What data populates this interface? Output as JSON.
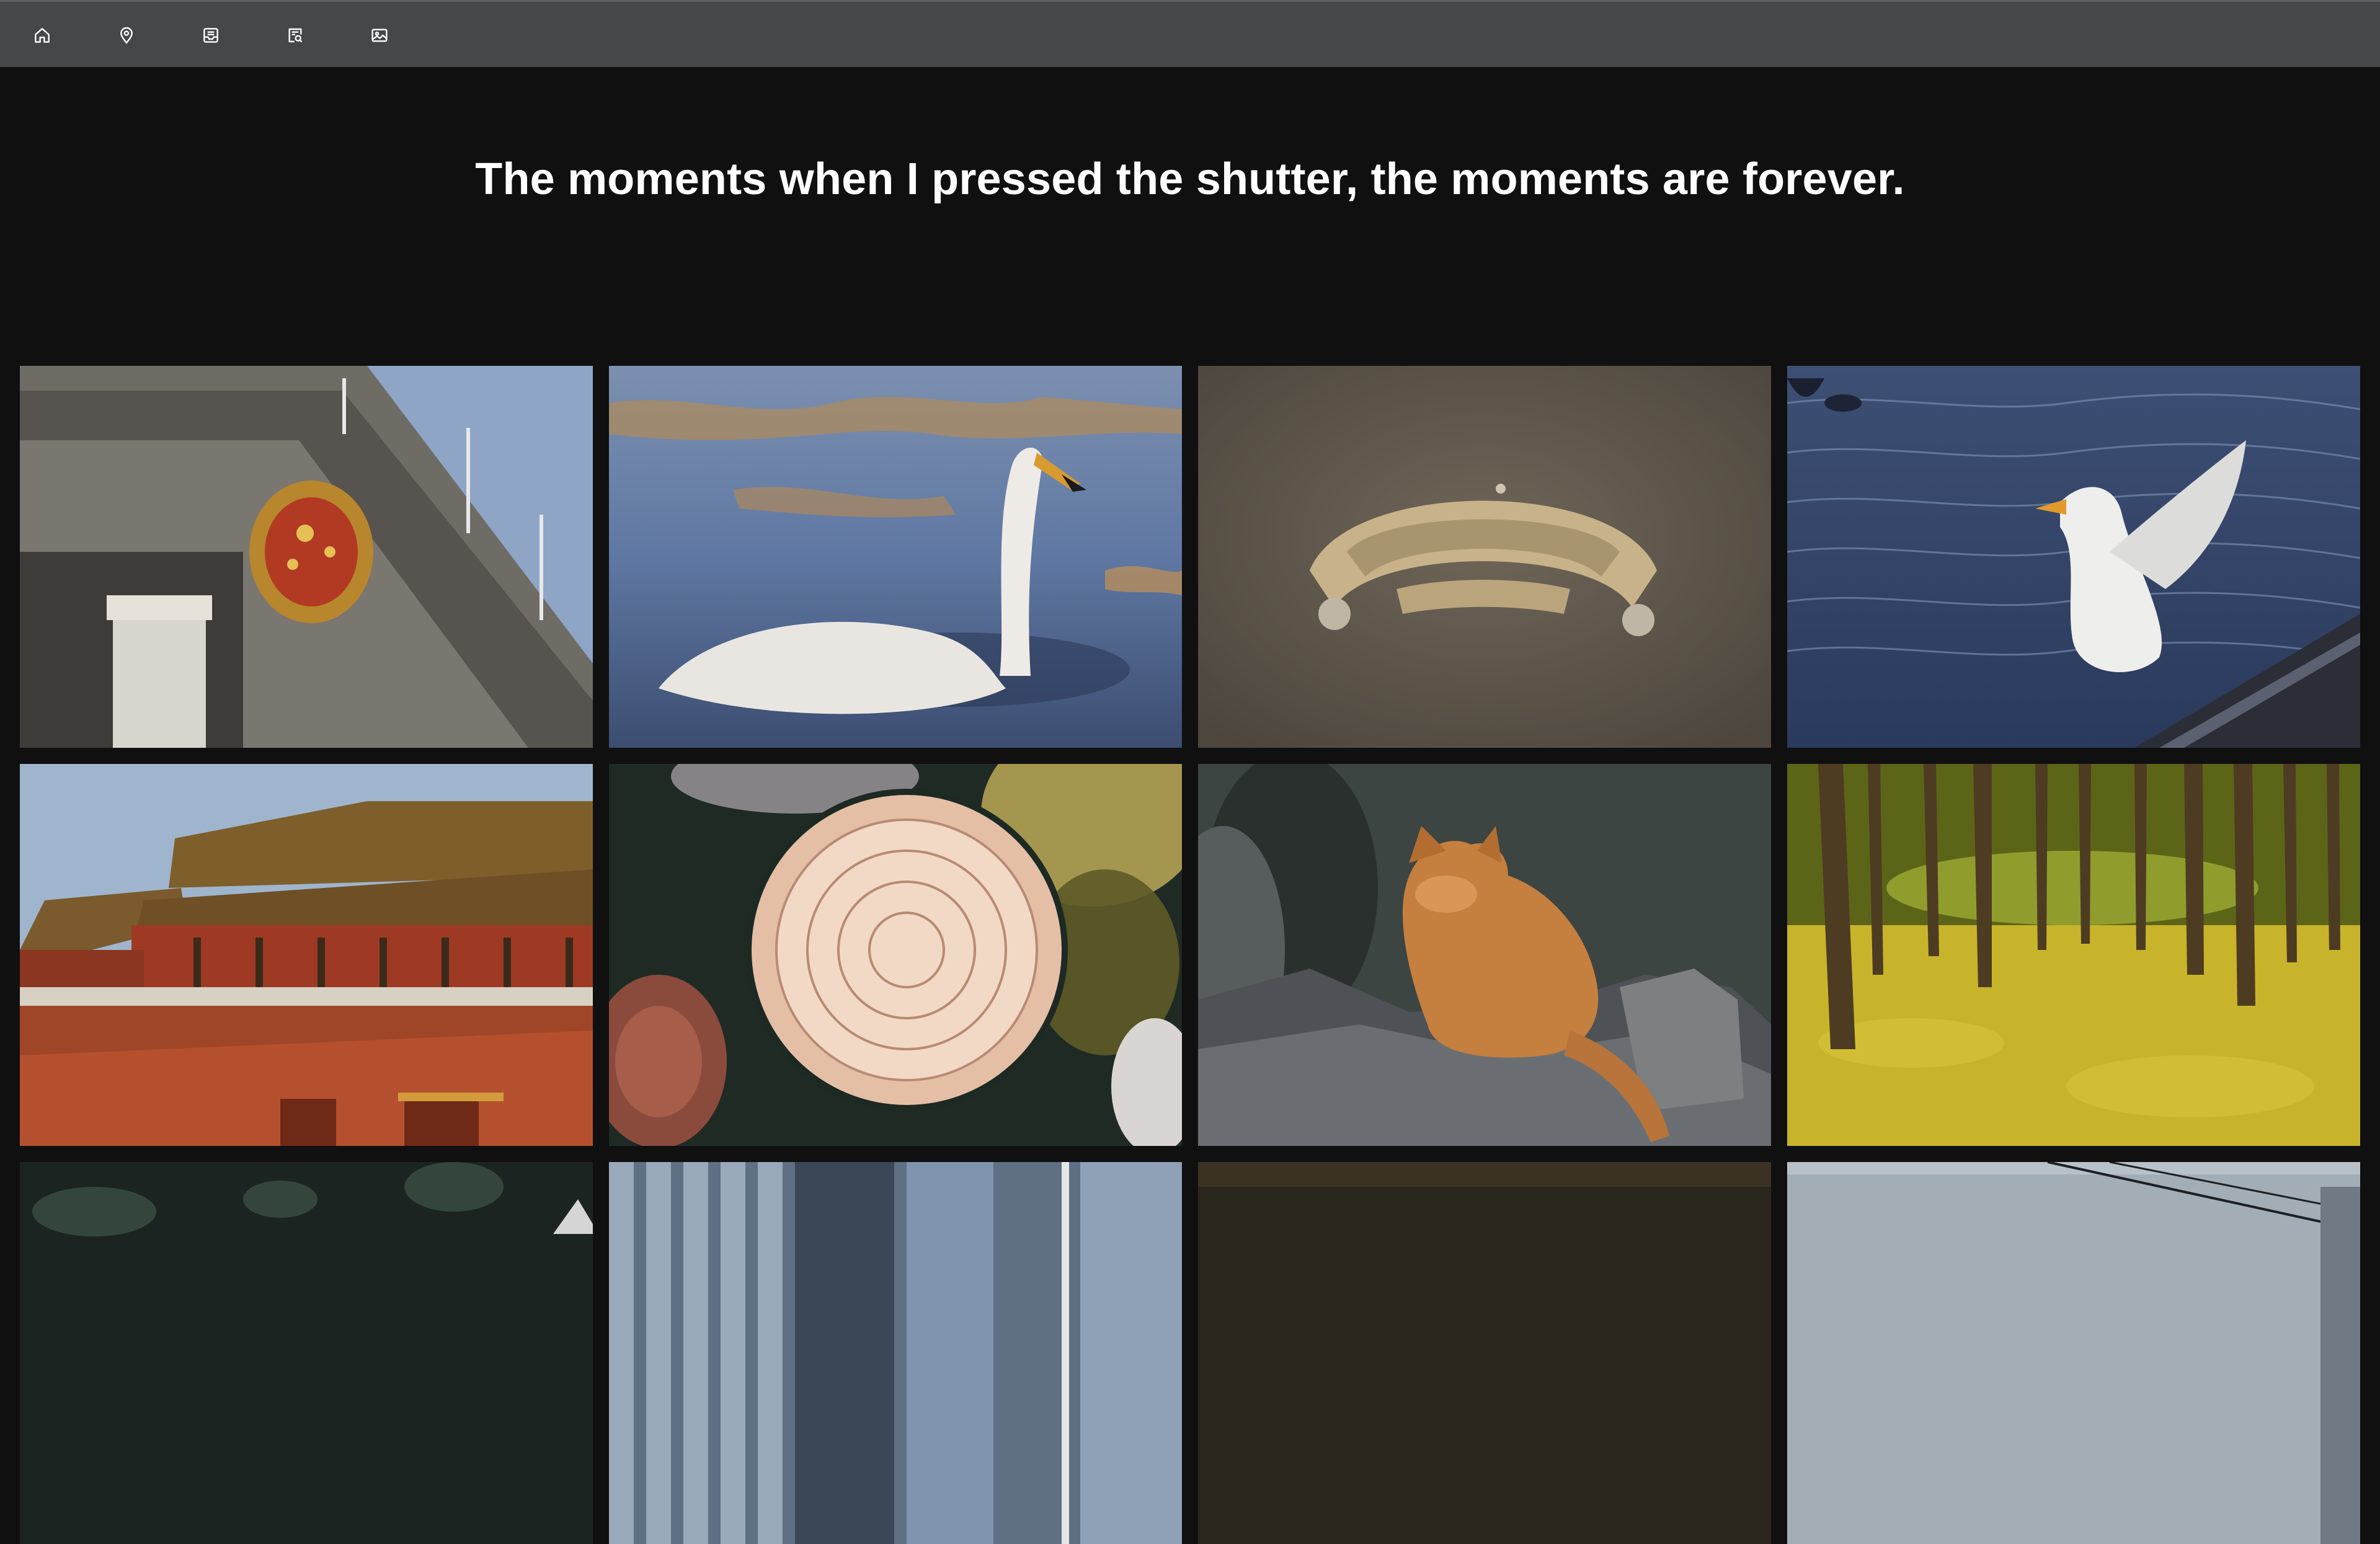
{
  "nav": {
    "items": [
      {
        "icon": "home-icon",
        "label": "Home"
      },
      {
        "icon": "map-pin-icon",
        "label": "Location"
      },
      {
        "icon": "inbox-icon",
        "label": "Inbox"
      },
      {
        "icon": "blog-search-icon",
        "label": "Search"
      },
      {
        "icon": "image-icon",
        "label": "Gallery"
      }
    ]
  },
  "hero": {
    "headline": "The moments when I pressed the shutter, the moments are forever."
  },
  "gallery": {
    "photos": [
      {
        "subject": "national-emblem-building"
      },
      {
        "subject": "swan-on-water"
      },
      {
        "subject": "jade-ornament"
      },
      {
        "subject": "white-duck-flapping"
      },
      {
        "subject": "palace-gate-tower"
      },
      {
        "subject": "chrysanthemum-flower"
      },
      {
        "subject": "orange-cat-on-rock"
      },
      {
        "subject": "ginkgo-forest"
      },
      {
        "subject": "garden-plants"
      },
      {
        "subject": "glass-building"
      },
      {
        "subject": "dark-soil"
      },
      {
        "subject": "bridge-cables"
      }
    ]
  }
}
